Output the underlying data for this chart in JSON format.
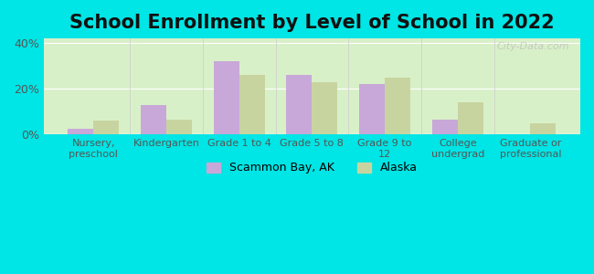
{
  "title": "School Enrollment by Level of School in 2022",
  "categories": [
    "Nursery,\npreschool",
    "Kindergarten",
    "Grade 1 to 4",
    "Grade 5 to 8",
    "Grade 9 to\n12",
    "College\nundergrad",
    "Graduate or\nprofessional"
  ],
  "scammon_values": [
    2.5,
    13.0,
    32.0,
    26.0,
    22.0,
    6.5,
    0.0
  ],
  "alaska_values": [
    6.0,
    6.5,
    26.0,
    23.0,
    25.0,
    14.0,
    5.0
  ],
  "scammon_color": "#c8a8d8",
  "alaska_color": "#c8d4a0",
  "background_color": "#00e5e5",
  "ylim": [
    0,
    42
  ],
  "yticks": [
    0,
    20,
    40
  ],
  "ytick_labels": [
    "0%",
    "20%",
    "40%"
  ],
  "title_fontsize": 15,
  "legend_labels": [
    "Scammon Bay, AK",
    "Alaska"
  ],
  "watermark": "City-Data.com"
}
